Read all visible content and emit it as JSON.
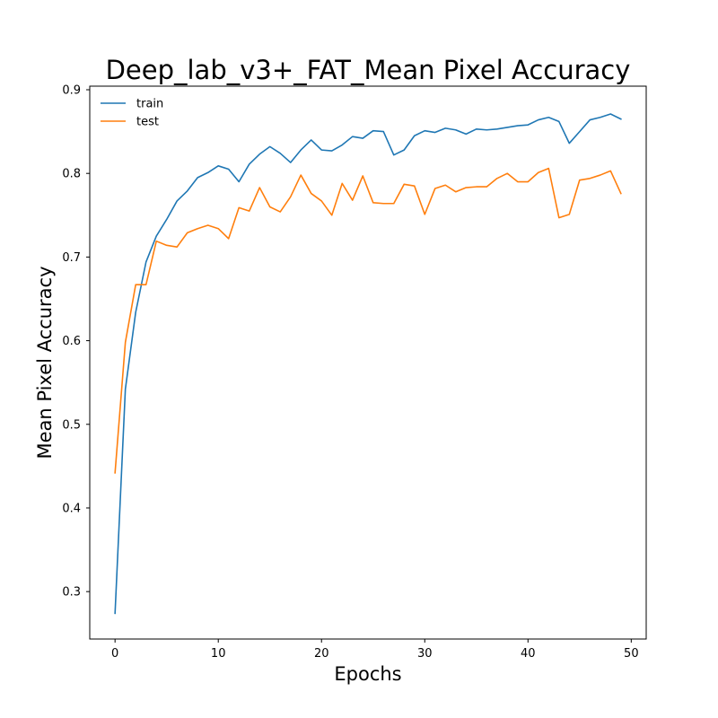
{
  "chart_data": {
    "type": "line",
    "title": "Deep_lab_v3+_FAT_Mean Pixel Accuracy",
    "xlabel": "Epochs",
    "ylabel": "Mean Pixel Accuracy",
    "xlim": [
      -2.45,
      51.45
    ],
    "ylim": [
      0.2433,
      0.9043
    ],
    "xticks": [
      0,
      10,
      20,
      30,
      40,
      50
    ],
    "yticks": [
      0.3,
      0.4,
      0.5,
      0.6,
      0.7,
      0.8,
      0.9
    ],
    "legend_position": "upper-left",
    "x": [
      0,
      1,
      2,
      3,
      4,
      5,
      6,
      7,
      8,
      9,
      10,
      11,
      12,
      13,
      14,
      15,
      16,
      17,
      18,
      19,
      20,
      21,
      22,
      23,
      24,
      25,
      26,
      27,
      28,
      29,
      30,
      31,
      32,
      33,
      34,
      35,
      36,
      37,
      38,
      39,
      40,
      41,
      42,
      43,
      44,
      45,
      46,
      47,
      48,
      49
    ],
    "series": [
      {
        "name": "train",
        "color": "#1f77b4",
        "values": [
          0.274,
          0.542,
          0.634,
          0.694,
          0.725,
          0.745,
          0.767,
          0.779,
          0.795,
          0.801,
          0.809,
          0.805,
          0.79,
          0.811,
          0.823,
          0.832,
          0.824,
          0.813,
          0.828,
          0.84,
          0.828,
          0.827,
          0.834,
          0.844,
          0.842,
          0.851,
          0.85,
          0.822,
          0.828,
          0.845,
          0.851,
          0.849,
          0.854,
          0.852,
          0.847,
          0.853,
          0.852,
          0.853,
          0.855,
          0.857,
          0.858,
          0.864,
          0.867,
          0.862,
          0.836,
          0.85,
          0.864,
          0.867,
          0.871,
          0.865
        ]
      },
      {
        "name": "test",
        "color": "#ff7f0e",
        "values": [
          0.442,
          0.598,
          0.667,
          0.667,
          0.719,
          0.714,
          0.712,
          0.729,
          0.734,
          0.738,
          0.734,
          0.722,
          0.759,
          0.755,
          0.783,
          0.76,
          0.754,
          0.772,
          0.798,
          0.776,
          0.767,
          0.75,
          0.788,
          0.768,
          0.797,
          0.765,
          0.764,
          0.764,
          0.787,
          0.785,
          0.751,
          0.782,
          0.786,
          0.778,
          0.783,
          0.784,
          0.784,
          0.794,
          0.8,
          0.79,
          0.79,
          0.801,
          0.806,
          0.747,
          0.751,
          0.792,
          0.794,
          0.798,
          0.803,
          0.776
        ]
      }
    ]
  }
}
